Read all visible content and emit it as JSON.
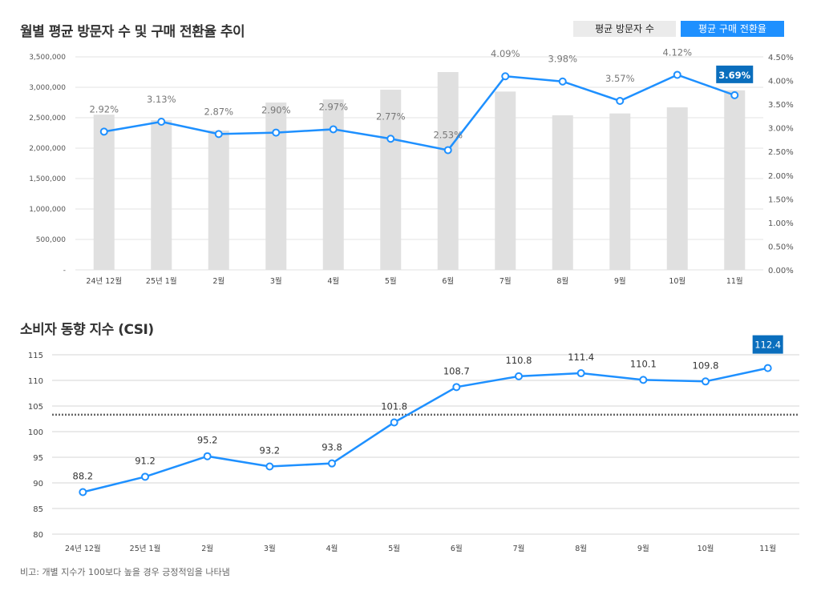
{
  "chart_data": [
    {
      "type": "bar+line",
      "title": "월별 평균 방문자 수 및 구매 전환율 추이",
      "categories": [
        "24년 12월",
        "25년 1월",
        "2월",
        "3월",
        "4월",
        "5월",
        "6월",
        "7월",
        "8월",
        "9월",
        "10월",
        "11월"
      ],
      "series": [
        {
          "name": "평균 방문자 수",
          "type": "bar",
          "axis": "left",
          "color": "#e0e0e0",
          "values": [
            2550000,
            2460000,
            2290000,
            2750000,
            2800000,
            2960000,
            3250000,
            2930000,
            2540000,
            2570000,
            2670000,
            2950000
          ]
        },
        {
          "name": "평균 구매 전환율",
          "type": "line",
          "axis": "right",
          "color": "#1e90ff",
          "values": [
            2.92,
            3.13,
            2.87,
            2.9,
            2.97,
            2.77,
            2.53,
            4.09,
            3.98,
            3.57,
            4.12,
            3.69
          ],
          "labels": [
            "2.92%",
            "3.13%",
            "2.87%",
            "2.90%",
            "2.97%",
            "2.77%",
            "2.53%",
            "4.09%",
            "3.98%",
            "3.57%",
            "4.12%",
            "3.69%"
          ]
        }
      ],
      "left_axis": {
        "range": [
          0,
          3500000
        ],
        "ticks": [
          "-",
          "500,000",
          "1,000,000",
          "1,500,000",
          "2,000,000",
          "2,500,000",
          "3,000,000",
          "3,500,000"
        ]
      },
      "right_axis": {
        "range": [
          0,
          4.5
        ],
        "ticks": [
          "0.00%",
          "0.50%",
          "1.00%",
          "1.50%",
          "2.00%",
          "2.50%",
          "3.00%",
          "3.50%",
          "4.00%",
          "4.50%"
        ]
      },
      "highlight_index": 11,
      "highlight_color": "#0a6ebd",
      "grid": true,
      "legend": "top-right"
    },
    {
      "type": "line",
      "title": "소비자 동향 지수 (CSI)",
      "categories": [
        "24년 12월",
        "25년 1월",
        "2월",
        "3월",
        "4월",
        "5월",
        "6월",
        "7월",
        "8월",
        "9월",
        "10월",
        "11월"
      ],
      "values": [
        88.2,
        91.2,
        95.2,
        93.2,
        93.8,
        101.8,
        108.7,
        110.8,
        111.4,
        110.1,
        109.8,
        112.4
      ],
      "labels": [
        "88.2",
        "91.2",
        "95.2",
        "93.2",
        "93.8",
        "101.8",
        "108.7",
        "110.8",
        "111.4",
        "110.1",
        "109.8",
        "112.4"
      ],
      "ylim": [
        80,
        115
      ],
      "yticks": [
        "80",
        "85",
        "90",
        "95",
        "100",
        "105",
        "110",
        "115"
      ],
      "reference_line": 103.3,
      "color": "#1e90ff",
      "highlight_index": 11,
      "highlight_color": "#0a6ebd",
      "grid": true,
      "note": "비고: 개별 지수가 100보다 높을 경우 긍정적임을 나타냄"
    }
  ]
}
